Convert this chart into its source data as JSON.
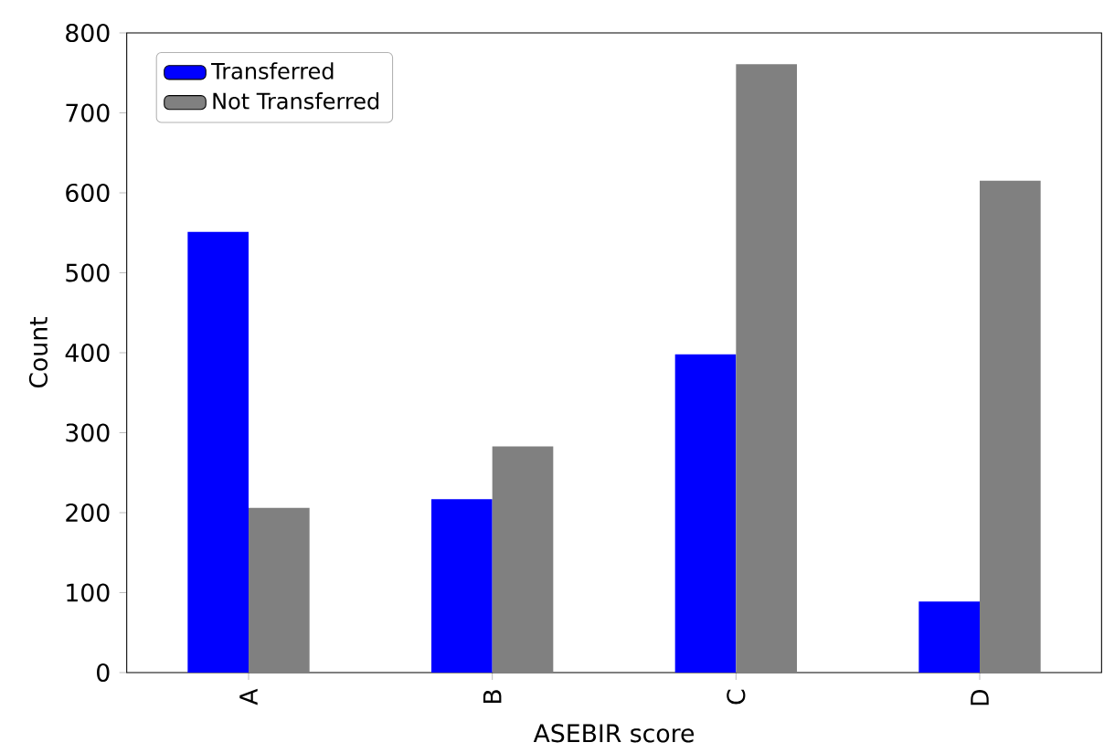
{
  "chart_data": {
    "type": "bar",
    "xlabel": "ASEBIR score",
    "ylabel": "Count",
    "categories": [
      "A",
      "B",
      "C",
      "D"
    ],
    "series": [
      {
        "name": "Transferred",
        "color": "#0000ff",
        "values": [
          551,
          217,
          398,
          89
        ]
      },
      {
        "name": "Not Transferred",
        "color": "#808080",
        "values": [
          206,
          283,
          761,
          615
        ]
      }
    ],
    "ylim": [
      0,
      800
    ],
    "yticks": [
      0,
      100,
      200,
      300,
      400,
      500,
      600,
      700,
      800
    ],
    "legend": "top left",
    "grid": false
  }
}
